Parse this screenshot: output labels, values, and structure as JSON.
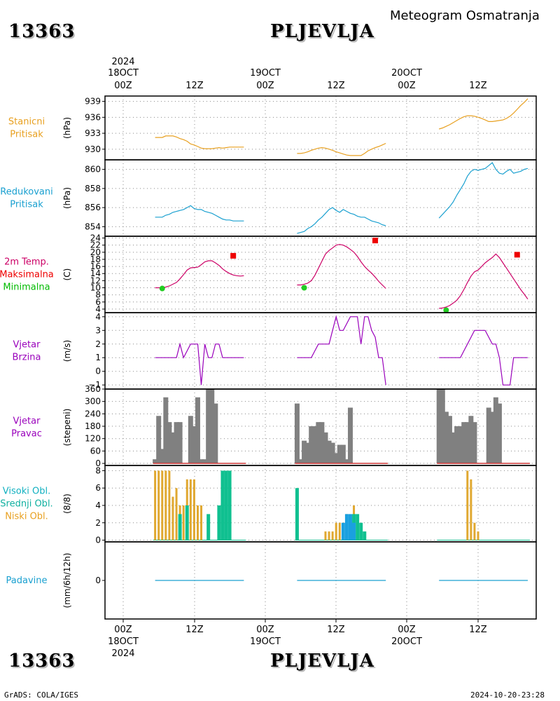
{
  "header": {
    "station_id": "13363",
    "station_name": "PLJEVLJA",
    "title": "Meteogram Osmatranja"
  },
  "footer": {
    "station_id": "13363",
    "station_name": "PLJEVLJA",
    "credit": "GrADS: COLA/IGES",
    "timestamp": "2024-10-20-23:28"
  },
  "time_axis": {
    "year": "2024",
    "top_dates": [
      "18OCT",
      "19OCT",
      "20OCT"
    ],
    "hour_labels": [
      "00Z",
      "12Z",
      "00Z",
      "12Z",
      "00Z",
      "12Z"
    ],
    "bottom_dates": [
      "18OCT",
      "19OCT",
      "20OCT"
    ]
  },
  "panels": [
    {
      "labels": [
        "Stanicni",
        "Pritisak"
      ],
      "unit": "(hPa)",
      "colors": [
        "#e8a020",
        "#e8a020"
      ],
      "ticks": [
        "930",
        "933",
        "936",
        "939"
      ]
    },
    {
      "labels": [
        "Redukovani",
        "Pritisak"
      ],
      "unit": "(hPa)",
      "colors": [
        "#1aa0d0",
        "#1aa0d0"
      ],
      "ticks": [
        "854",
        "856",
        "858",
        "860"
      ]
    },
    {
      "labels": [
        "2m Temp.",
        "Maksimalna",
        "Minimalna"
      ],
      "unit": "(C)",
      "colors": [
        "#cc0066",
        "#ee0000",
        "#00bb00"
      ],
      "ticks": [
        "4",
        "6",
        "8",
        "10",
        "12",
        "14",
        "16",
        "18",
        "20",
        "22",
        "24"
      ]
    },
    {
      "labels": [
        "Vjetar",
        "Brzina"
      ],
      "unit": "(m/s)",
      "colors": [
        "#9900bb",
        "#9900bb"
      ],
      "ticks": [
        "−1",
        "0",
        "1",
        "2",
        "3",
        "4"
      ]
    },
    {
      "labels": [
        "Vjetar",
        "Pravac"
      ],
      "unit": "(stepeni)",
      "colors": [
        "#9900bb",
        "#9900bb"
      ],
      "ticks": [
        "0",
        "60",
        "120",
        "180",
        "240",
        "300",
        "360"
      ]
    },
    {
      "labels": [
        "Visoki Obl.",
        "Srednji Obl.",
        "Niski Obl."
      ],
      "unit": "(8/8)",
      "colors": [
        "#10b0c0",
        "#10b0a0",
        "#e8a020"
      ],
      "ticks": [
        "0",
        "2",
        "4",
        "6",
        "8"
      ]
    },
    {
      "labels": [
        "Padavine"
      ],
      "unit": "(mm/6h/12h)",
      "colors": [
        "#1aa0d0"
      ],
      "ticks": [
        "0"
      ]
    }
  ],
  "chart_data": [
    {
      "type": "line",
      "name": "station_pressure",
      "ylim": [
        928,
        940
      ],
      "color": "#e8a020",
      "segments": [
        {
          "x": [
            9,
            10,
            11,
            12,
            13,
            14,
            15,
            16,
            17,
            18,
            19,
            20,
            21,
            22,
            23,
            24,
            25,
            26,
            27,
            28,
            29,
            30,
            31,
            32,
            33,
            34
          ],
          "y": [
            932.2,
            932.2,
            932.2,
            932.5,
            932.5,
            932.5,
            932.3,
            932,
            931.8,
            931.5,
            931,
            930.8,
            930.5,
            930.2,
            930.1,
            930.1,
            930.1,
            930.2,
            930.3,
            930.2,
            930.3,
            930.4,
            930.4,
            930.4,
            930.4,
            930.4
          ]
        },
        {
          "x": [
            49,
            50,
            51,
            52,
            53,
            54,
            55,
            56,
            57,
            58,
            59,
            60,
            61,
            62,
            63,
            64,
            65,
            66,
            67,
            68,
            69,
            70,
            71,
            72,
            73,
            74
          ],
          "y": [
            929.2,
            929.2,
            929.3,
            929.5,
            929.8,
            930,
            930.2,
            930.3,
            930.2,
            930,
            929.8,
            929.5,
            929.3,
            929.1,
            928.9,
            928.8,
            928.8,
            928.8,
            928.8,
            929.2,
            929.7,
            930,
            930.3,
            930.5,
            930.8,
            931.1
          ]
        },
        {
          "x": [
            89,
            90,
            91,
            92,
            93,
            94,
            95,
            96,
            97,
            98,
            99,
            100,
            101,
            102,
            103,
            104,
            105,
            106,
            107,
            108,
            109,
            110,
            111,
            112,
            113,
            114
          ],
          "y": [
            933.8,
            934,
            934.3,
            934.6,
            935,
            935.4,
            935.8,
            936.1,
            936.3,
            936.3,
            936.2,
            936,
            935.8,
            935.5,
            935.2,
            935.2,
            935.3,
            935.4,
            935.5,
            935.8,
            936.2,
            936.8,
            937.5,
            938.2,
            938.8,
            939.5
          ]
        }
      ]
    },
    {
      "type": "line",
      "name": "reduced_pressure",
      "ylim": [
        853,
        861
      ],
      "color": "#1aa0d0",
      "segments": [
        {
          "x": [
            9,
            10,
            11,
            12,
            13,
            14,
            15,
            16,
            17,
            18,
            19,
            20,
            21,
            22,
            23,
            24,
            25,
            26,
            27,
            28,
            29,
            30,
            31,
            32,
            33,
            34
          ],
          "y": [
            855,
            855,
            855,
            855.2,
            855.3,
            855.5,
            855.6,
            855.7,
            855.8,
            856,
            856.2,
            855.9,
            855.8,
            855.8,
            855.6,
            855.5,
            855.4,
            855.2,
            855,
            854.8,
            854.7,
            854.7,
            854.6,
            854.6,
            854.6,
            854.6
          ]
        },
        {
          "x": [
            49,
            50,
            51,
            52,
            53,
            54,
            55,
            56,
            57,
            58,
            59,
            60,
            61,
            62,
            63,
            64,
            65,
            66,
            67,
            68,
            69,
            70,
            71,
            72,
            73,
            74
          ],
          "y": [
            853.3,
            853.4,
            853.5,
            853.8,
            854,
            854.3,
            854.7,
            855,
            855.4,
            855.8,
            856,
            855.7,
            855.5,
            855.8,
            855.6,
            855.4,
            855.3,
            855.1,
            855,
            855,
            854.8,
            854.6,
            854.5,
            854.4,
            854.2,
            854.1
          ]
        },
        {
          "x": [
            89,
            90,
            91,
            92,
            93,
            94,
            95,
            96,
            97,
            98,
            99,
            100,
            101,
            102,
            103,
            104,
            105,
            106,
            107,
            108,
            109,
            110,
            111,
            112,
            113,
            114
          ],
          "y": [
            854.9,
            855.3,
            855.7,
            856.1,
            856.6,
            857.3,
            857.9,
            858.5,
            859.3,
            859.8,
            860,
            859.9,
            860,
            860.1,
            860.4,
            860.7,
            860,
            859.6,
            859.5,
            859.8,
            860,
            859.6,
            859.7,
            859.8,
            860,
            860.1
          ]
        }
      ]
    },
    {
      "type": "line",
      "name": "temperature_2m",
      "ylim": [
        3,
        24.5
      ],
      "color": "#cc0066",
      "segments": [
        {
          "x": [
            9,
            10,
            11,
            12,
            13,
            14,
            15,
            16,
            17,
            18,
            19,
            20,
            21,
            22,
            23,
            24,
            25,
            26,
            27,
            28,
            29,
            30,
            31,
            32,
            33,
            34
          ],
          "y": [
            10,
            10,
            10,
            10.2,
            10.5,
            11,
            11.5,
            12.5,
            13.7,
            15,
            15.6,
            15.7,
            15.8,
            16.5,
            17.3,
            17.6,
            17.6,
            17,
            16.3,
            15.3,
            14.6,
            14,
            13.6,
            13.4,
            13.3,
            13.4
          ]
        },
        {
          "x": [
            49,
            50,
            51,
            52,
            53,
            54,
            55,
            56,
            57,
            58,
            59,
            60,
            61,
            62,
            63,
            64,
            65,
            66,
            67,
            68,
            69,
            70,
            71,
            72,
            73,
            74
          ],
          "y": [
            10.8,
            10.8,
            11,
            11.3,
            12,
            13.5,
            15.5,
            17.5,
            19.5,
            20.5,
            21.2,
            22,
            22.2,
            22,
            21.5,
            20.8,
            20,
            18.8,
            17.3,
            16,
            15,
            14.1,
            13,
            11.8,
            10.8,
            9.8
          ]
        },
        {
          "x": [
            89,
            90,
            91,
            92,
            93,
            94,
            95,
            96,
            97,
            98,
            99,
            100,
            101,
            102,
            103,
            104,
            105,
            106,
            107,
            108,
            109,
            110,
            111,
            112,
            113,
            114
          ],
          "y": [
            4.2,
            4.3,
            4.6,
            5,
            5.7,
            6.5,
            7.8,
            9.5,
            11.5,
            13.3,
            14.5,
            15,
            16,
            17,
            17.8,
            18.5,
            19.5,
            18.5,
            17,
            15.5,
            14,
            12.5,
            11,
            9.5,
            8.2,
            6.8
          ]
        }
      ],
      "max_points": [
        {
          "x": 31,
          "y": 19
        },
        {
          "x": 71,
          "y": 23.3
        },
        {
          "x": 111,
          "y": 19.3
        }
      ],
      "min_points": [
        {
          "x": 11,
          "y": 9.8
        },
        {
          "x": 51,
          "y": 10
        },
        {
          "x": 91,
          "y": 3.7
        }
      ]
    },
    {
      "type": "line",
      "name": "wind_speed",
      "ylim": [
        -1.3,
        4.3
      ],
      "color": "#9900bb",
      "segments": [
        {
          "x": [
            9,
            10,
            11,
            12,
            13,
            14,
            15,
            16,
            17,
            18,
            19,
            20,
            21,
            22,
            23,
            24,
            25,
            26,
            27,
            28,
            29,
            30,
            31,
            32,
            33,
            34
          ],
          "y": [
            1,
            1,
            1,
            1,
            1,
            1,
            1,
            2,
            1,
            1.5,
            2,
            2,
            2,
            -1,
            2,
            1,
            1,
            2,
            2,
            1,
            1,
            1,
            1,
            1,
            1,
            1
          ]
        },
        {
          "x": [
            49,
            50,
            51,
            52,
            53,
            54,
            55,
            56,
            57,
            58,
            59,
            60,
            61,
            62,
            63,
            64,
            65,
            66,
            67,
            68,
            69,
            70,
            71,
            72,
            73,
            74
          ],
          "y": [
            1,
            1,
            1,
            1,
            1,
            1.5,
            2,
            2,
            2,
            2,
            3,
            4,
            3,
            3,
            3.5,
            4,
            4,
            4,
            2,
            4,
            4,
            3,
            2.5,
            1,
            1,
            -1
          ]
        },
        {
          "x": [
            89,
            90,
            91,
            92,
            93,
            94,
            95,
            96,
            97,
            98,
            99,
            100,
            101,
            102,
            103,
            104,
            105,
            106,
            107,
            108,
            109,
            110,
            111,
            112,
            113,
            114
          ],
          "y": [
            1,
            1,
            1,
            1,
            1,
            1,
            1,
            1.5,
            2,
            2.5,
            3,
            3,
            3,
            3,
            2.5,
            2,
            2,
            1,
            -1,
            -1,
            -1,
            1,
            1,
            1,
            1,
            1
          ]
        }
      ]
    },
    {
      "type": "bar",
      "name": "wind_direction",
      "ylim": [
        -10,
        360
      ],
      "color": "#808080",
      "x": [
        9,
        10,
        11,
        12,
        13,
        14,
        15,
        16,
        17,
        18,
        19,
        20,
        21,
        22,
        23,
        24,
        25,
        26,
        27,
        28,
        29,
        30,
        31,
        32,
        33,
        34,
        49,
        50,
        51,
        52,
        53,
        54,
        55,
        56,
        57,
        58,
        59,
        60,
        61,
        62,
        63,
        64,
        65,
        66,
        67,
        68,
        69,
        70,
        71,
        72,
        73,
        74,
        89,
        90,
        91,
        92,
        93,
        94,
        95,
        96,
        97,
        98,
        99,
        100,
        101,
        102,
        103,
        104,
        105,
        106,
        107,
        108,
        109,
        110,
        111,
        112,
        113,
        114
      ],
      "values": [
        20,
        230,
        70,
        320,
        200,
        150,
        200,
        200,
        0,
        0,
        230,
        180,
        320,
        20,
        20,
        360,
        360,
        290,
        0,
        0,
        0,
        0,
        0,
        0,
        0,
        0,
        290,
        20,
        110,
        100,
        180,
        180,
        200,
        200,
        150,
        110,
        100,
        50,
        90,
        90,
        20,
        270,
        0,
        0,
        0,
        0,
        0,
        0,
        0,
        0,
        0,
        0,
        360,
        360,
        250,
        230,
        150,
        180,
        180,
        200,
        200,
        230,
        200,
        0,
        0,
        0,
        270,
        250,
        320,
        290,
        0,
        0,
        0,
        0,
        0,
        0,
        0,
        0
      ]
    },
    {
      "type": "bar",
      "name": "cloud_cover",
      "ylim": [
        -0.2,
        8.6
      ],
      "series": [
        {
          "name": "Visoki Obl.",
          "color": "#10b0c0",
          "x": [],
          "values": []
        },
        {
          "name": "Srednji Obl.",
          "color": "#10c090",
          "x": [
            16,
            18,
            24,
            27,
            28,
            29,
            30,
            49,
            64,
            65,
            66,
            67,
            68
          ],
          "values": [
            3,
            4,
            3,
            4,
            8,
            8,
            8,
            6,
            2,
            3,
            3,
            2,
            1
          ]
        },
        {
          "name": "Niski Obl.",
          "color": "#e0a830",
          "x": [
            9,
            10,
            11,
            12,
            13,
            14,
            15,
            16,
            17,
            18,
            19,
            20,
            21,
            22,
            23,
            24,
            25,
            26,
            57,
            58,
            59,
            60,
            61,
            62,
            63,
            64,
            65,
            66,
            97,
            98,
            99,
            100,
            101
          ],
          "values": [
            8,
            8,
            8,
            8,
            8,
            5,
            6,
            4,
            4,
            7,
            7,
            7,
            4,
            4,
            0,
            0,
            0,
            0,
            1,
            1,
            1,
            2,
            2,
            2,
            3,
            2,
            4,
            0,
            8,
            7,
            2,
            1,
            0
          ]
        }
      ],
      "mid_highlight": {
        "x": [
          62,
          63,
          64,
          65
        ],
        "values": [
          2,
          3,
          3,
          2
        ],
        "color": "#1aa0e0"
      }
    },
    {
      "type": "line",
      "name": "precipitation",
      "ylim": [
        -0.5,
        0.5
      ],
      "color": "#1aa0d0",
      "segments": [
        {
          "x": [
            9,
            34
          ],
          "y": [
            0,
            0
          ]
        },
        {
          "x": [
            49,
            74
          ],
          "y": [
            0,
            0
          ]
        },
        {
          "x": [
            89,
            114
          ],
          "y": [
            0,
            0
          ]
        }
      ]
    }
  ]
}
